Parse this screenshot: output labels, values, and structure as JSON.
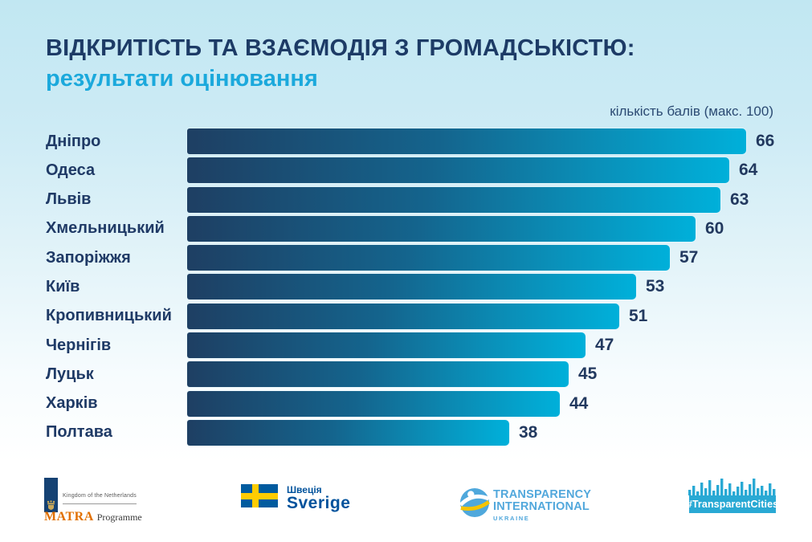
{
  "header": {
    "title": "ВІДКРИТІСТЬ ТА ВЗАЄМОДІЯ З ГРОМАДСЬКІСТЮ:",
    "subtitle": "результати оцінювання",
    "axis_note": "кількість балів (макс. 100)"
  },
  "chart_data": {
    "type": "bar",
    "orientation": "horizontal",
    "title": "ВІДКРИТІСТЬ ТА ВЗАЄМОДІЯ З ГРОМАДСЬКІСТЮ: результати оцінювання",
    "axis_note": "кількість балів (макс. 100)",
    "categories": [
      "Дніпро",
      "Одеса",
      "Львів",
      "Хмельницький",
      "Запоріжжя",
      "Київ",
      "Кропивницький",
      "Чернігів",
      "Луцьк",
      "Харків",
      "Полтава"
    ],
    "values": [
      66,
      64,
      63,
      60,
      57,
      53,
      51,
      47,
      45,
      44,
      38
    ],
    "xlim": [
      0,
      100
    ],
    "value_labels_shown": true,
    "grid": false,
    "legend": false,
    "bar_gradient": [
      "#1e3f63",
      "#00b0da"
    ]
  },
  "footer": {
    "matra": {
      "kingdom": "Kingdom of the Netherlands",
      "name": "MATRA",
      "programme": "Programme"
    },
    "sweden": {
      "name_uk": "Швеція",
      "name": "Sverige"
    },
    "transparency": {
      "line1": "TRANSPARENCY",
      "line2": "INTERNATIONAL",
      "line3": "UKRAINE"
    },
    "transparent_cities": {
      "label": "#TransparentCities"
    }
  },
  "colors": {
    "background_top": "#c1e7f2",
    "background_bottom": "#ffffff",
    "title_navy": "#1d3b66",
    "subtitle_cyan": "#1ba9dc",
    "bar_dark": "#1e3f63",
    "bar_cyan": "#00b0da",
    "value_navy": "#22395f",
    "footer_white": "#ffffff",
    "matra_orange": "#e17000",
    "nl_blue": "#154273",
    "sweden_blue": "#005b9f",
    "sweden_yellow": "#fecc02",
    "ti_blue": "#52a8dc",
    "tc_cyan": "#29a9d4"
  }
}
